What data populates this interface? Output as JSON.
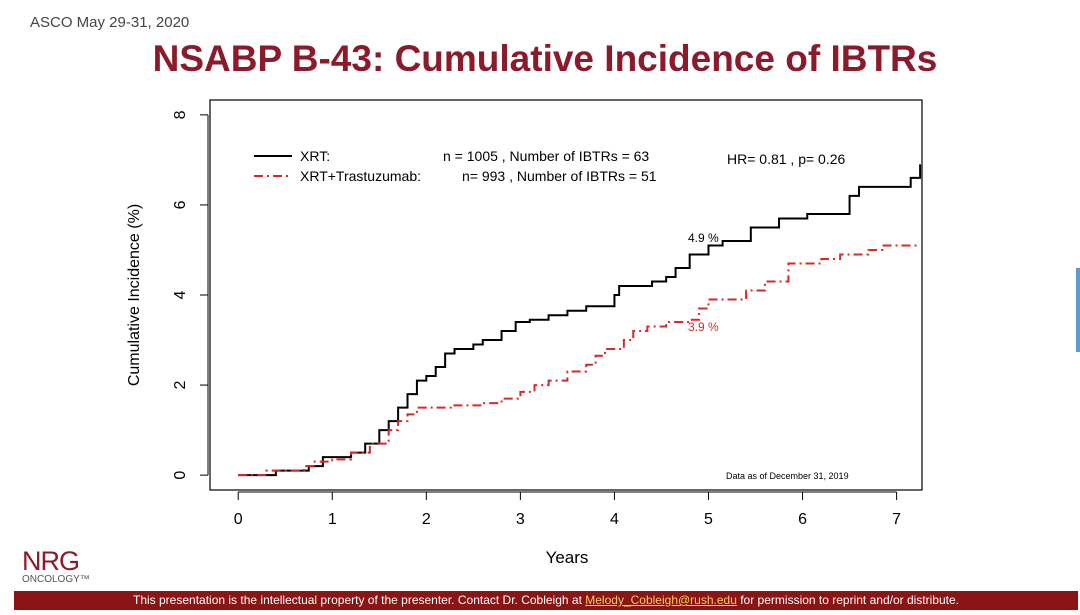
{
  "slide": {
    "conference": "ASCO May 29-31, 2020",
    "title": "NSABP B-43: Cumulative Incidence of IBTRs",
    "logo": "NRG",
    "logo_sub": "ONCOLOGY™",
    "footer": {
      "before": "This presentation is the intellectual property of the presenter. Contact Dr. Cobleigh at",
      "link": "Melody_Cobleigh@rush.edu",
      "after": "for permission to reprint and/or distribute."
    }
  },
  "chart_data": {
    "type": "line",
    "step": true,
    "x_label": "Years",
    "y_label": "Cumulative Incidence (%)",
    "xlim": [
      -0.3,
      7.27
    ],
    "ylim": [
      -0.33,
      8.33
    ],
    "xticks": [
      0,
      1,
      2,
      3,
      4,
      5,
      6,
      7
    ],
    "yticks": [
      0,
      2,
      4,
      6,
      8
    ],
    "series": [
      {
        "name": "XRT:",
        "legend_note": "n = 1005 , Number of IBTRs = 63",
        "color": "#000000",
        "dash": "none",
        "x": [
          0,
          0.4,
          0.75,
          0.9,
          1.2,
          1.35,
          1.5,
          1.6,
          1.7,
          1.8,
          1.9,
          2.0,
          2.1,
          2.2,
          2.3,
          2.5,
          2.6,
          2.8,
          2.95,
          3.1,
          3.3,
          3.5,
          3.7,
          4.0,
          4.05,
          4.4,
          4.55,
          4.65,
          4.8,
          5.0,
          5.15,
          5.45,
          5.75,
          6.05,
          6.5,
          6.6,
          7.15,
          7.25
        ],
        "values": [
          0,
          0.1,
          0.2,
          0.4,
          0.5,
          0.7,
          1.0,
          1.2,
          1.5,
          1.8,
          2.1,
          2.2,
          2.4,
          2.7,
          2.8,
          2.9,
          3.0,
          3.2,
          3.4,
          3.45,
          3.55,
          3.65,
          3.75,
          4.0,
          4.2,
          4.3,
          4.4,
          4.6,
          4.9,
          5.1,
          5.2,
          5.5,
          5.7,
          5.8,
          6.2,
          6.4,
          6.6,
          6.9
        ]
      },
      {
        "name": "XRT+Trastuzumab:",
        "legend_note": "n= 993 , Number of IBTRs = 51",
        "color": "#d42a2a",
        "dash": "9,4,2,4",
        "x": [
          0,
          0.3,
          0.7,
          0.8,
          1.0,
          1.2,
          1.4,
          1.6,
          1.7,
          1.8,
          1.9,
          2.3,
          2.6,
          2.8,
          3.0,
          3.15,
          3.3,
          3.5,
          3.7,
          3.8,
          3.9,
          4.1,
          4.2,
          4.35,
          4.55,
          4.8,
          4.9,
          5.0,
          5.4,
          5.6,
          5.85,
          6.2,
          6.4,
          6.7,
          6.85,
          7.25
        ],
        "values": [
          0,
          0.1,
          0.2,
          0.3,
          0.35,
          0.5,
          0.7,
          1.0,
          1.2,
          1.35,
          1.5,
          1.55,
          1.6,
          1.7,
          1.85,
          2.0,
          2.1,
          2.3,
          2.45,
          2.65,
          2.8,
          3.0,
          3.2,
          3.3,
          3.4,
          3.45,
          3.7,
          3.9,
          4.1,
          4.3,
          4.7,
          4.8,
          4.9,
          5.0,
          5.1,
          5.1
        ]
      }
    ],
    "annotations": [
      "HR= 0.81 ,  p= 0.26",
      "4.9 %",
      "3.9 %",
      "Data as of December 31, 2019"
    ]
  }
}
